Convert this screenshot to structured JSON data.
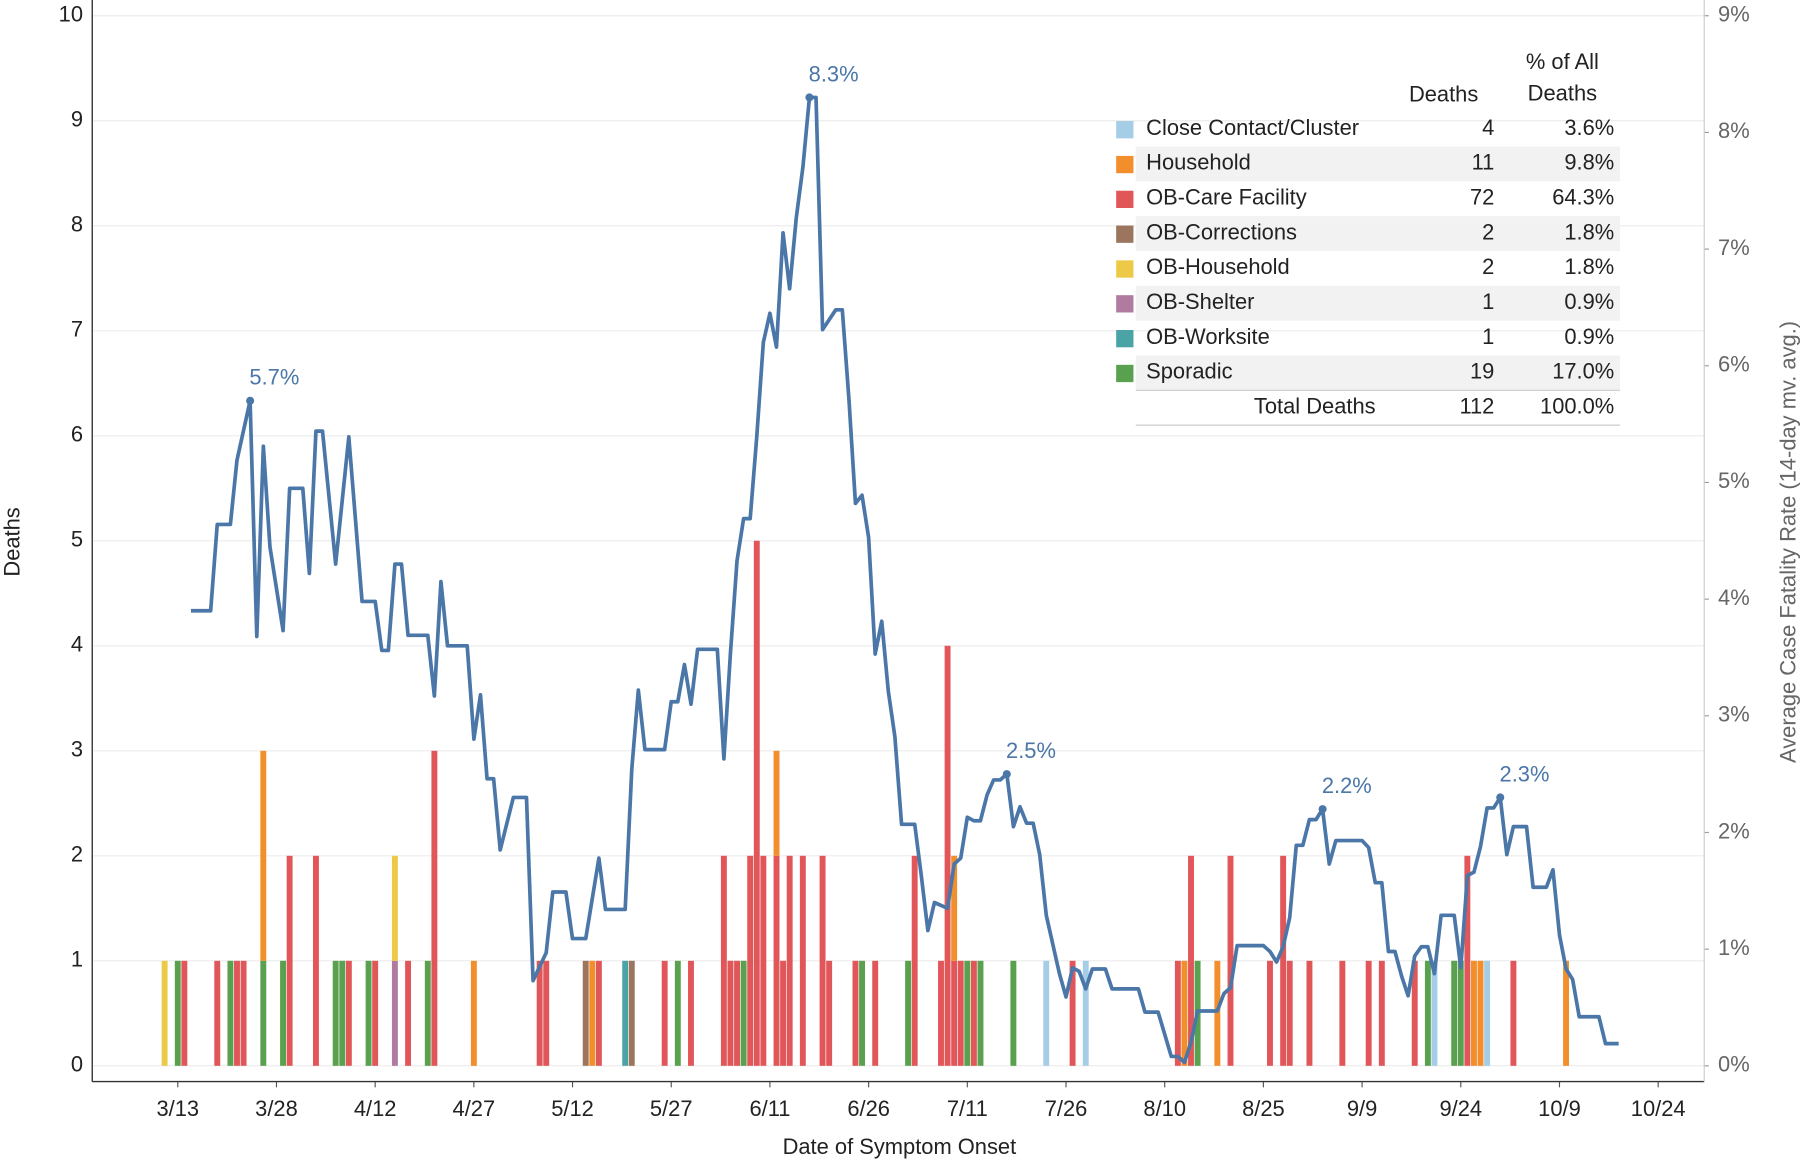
{
  "chart_data": {
    "type": "bar",
    "x_label": "Date of Symptom Onset",
    "y_label": "Deaths",
    "y2_label": "Average Case Fatality Rate (14-day mv. avg.)",
    "xlim": [
      "2/29",
      "10/31"
    ],
    "xticks": [
      "3/13",
      "3/28",
      "4/12",
      "4/27",
      "5/12",
      "5/27",
      "6/11",
      "6/26",
      "7/11",
      "7/26",
      "8/10",
      "8/25",
      "9/9",
      "9/24",
      "10/9",
      "10/24"
    ],
    "ylim": [
      -0.15,
      10.15
    ],
    "yticks": [
      0,
      1,
      2,
      3,
      4,
      5,
      6,
      7,
      8,
      9,
      10
    ],
    "y2lim": [
      -0.135,
      9.135
    ],
    "y2ticks": [
      {
        "value": 0,
        "label": "0%"
      },
      {
        "value": 1,
        "label": "1%"
      },
      {
        "value": 2,
        "label": "2%"
      },
      {
        "value": 3,
        "label": "3%"
      },
      {
        "value": 4,
        "label": "4%"
      },
      {
        "value": 5,
        "label": "5%"
      },
      {
        "value": 6,
        "label": "6%"
      },
      {
        "value": 7,
        "label": "7%"
      },
      {
        "value": 8,
        "label": "8%"
      },
      {
        "value": 9,
        "label": "9%"
      }
    ],
    "grid": true,
    "stacked": true,
    "series": [
      {
        "name": "Close Contact/Cluster",
        "color": "#a6cde6",
        "x": [
          "7/23",
          "7/29",
          "9/20",
          "9/28"
        ],
        "values": [
          1,
          1,
          1,
          1
        ],
        "total_deaths": 4,
        "share": 3.6,
        "share_label": "3.6%"
      },
      {
        "name": "Household",
        "color": "#f28e2b",
        "x": [
          "3/26",
          "4/27",
          "5/15",
          "6/12",
          "7/9",
          "8/13",
          "8/18",
          "9/26",
          "9/27",
          "10/10"
        ],
        "values": [
          2,
          1,
          1,
          1,
          1,
          1,
          1,
          1,
          1,
          1
        ],
        "total_deaths": 11,
        "share": 9.8,
        "share_label": "9.8%"
      },
      {
        "name": "OB-Care Facility",
        "color": "#e15759",
        "x": [
          "3/14",
          "3/19",
          "3/22",
          "3/23",
          "3/30",
          "4/3",
          "4/8",
          "4/12",
          "4/17",
          "4/21",
          "5/7",
          "5/8",
          "5/16",
          "5/26",
          "5/30",
          "6/4",
          "6/5",
          "6/6",
          "6/8",
          "6/9",
          "6/10",
          "6/12",
          "6/13",
          "6/14",
          "6/16",
          "6/19",
          "6/20",
          "6/24",
          "6/27",
          "7/3",
          "7/7",
          "7/8",
          "7/9",
          "7/10",
          "7/12",
          "7/27",
          "8/12",
          "8/14",
          "8/20",
          "8/26",
          "8/28",
          "8/29",
          "9/1",
          "9/6",
          "9/10",
          "9/12",
          "9/17",
          "9/25",
          "10/2"
        ],
        "values": [
          1,
          1,
          1,
          1,
          2,
          2,
          1,
          1,
          1,
          3,
          1,
          1,
          1,
          1,
          1,
          2,
          1,
          1,
          2,
          5,
          2,
          2,
          1,
          2,
          2,
          2,
          1,
          1,
          1,
          2,
          1,
          4,
          1,
          1,
          1,
          1,
          1,
          2,
          2,
          1,
          2,
          1,
          1,
          1,
          1,
          1,
          1,
          2,
          1
        ],
        "total_deaths": 72,
        "share": 64.3,
        "share_label": "64.3%"
      },
      {
        "name": "OB-Corrections",
        "color": "#9c755f",
        "x": [
          "5/14",
          "5/21"
        ],
        "values": [
          1,
          1
        ],
        "total_deaths": 2,
        "share": 1.8,
        "share_label": "1.8%"
      },
      {
        "name": "OB-Household",
        "color": "#edc948",
        "x": [
          "3/11",
          "4/15"
        ],
        "values": [
          1,
          1
        ],
        "total_deaths": 2,
        "share": 1.8,
        "share_label": "1.8%"
      },
      {
        "name": "OB-Shelter",
        "color": "#b07aa1",
        "x": [
          "4/15"
        ],
        "values": [
          1
        ],
        "total_deaths": 1,
        "share": 0.9,
        "share_label": "0.9%"
      },
      {
        "name": "OB-Worksite",
        "color": "#4aa3a4",
        "x": [
          "5/20"
        ],
        "values": [
          1
        ],
        "total_deaths": 1,
        "share": 0.9,
        "share_label": "0.9%"
      },
      {
        "name": "Sporadic",
        "color": "#59a14f",
        "x": [
          "3/13",
          "3/21",
          "3/26",
          "3/29",
          "4/6",
          "4/7",
          "4/11",
          "4/20",
          "5/28",
          "6/7",
          "6/25",
          "7/2",
          "7/11",
          "7/13",
          "7/18",
          "8/15",
          "9/19",
          "9/23",
          "9/24"
        ],
        "values": [
          1,
          1,
          1,
          1,
          1,
          1,
          1,
          1,
          1,
          1,
          1,
          1,
          1,
          1,
          1,
          1,
          1,
          1,
          1
        ],
        "total_deaths": 19,
        "share": 17.0,
        "share_label": "17.0%"
      }
    ],
    "line": {
      "axis": "y2",
      "color": "#4a76a8",
      "x": [
        "3/15",
        "3/18",
        "3/19",
        "3/21",
        "3/22",
        "3/24",
        "3/25",
        "3/26",
        "3/27",
        "3/29",
        "3/30",
        "4/1",
        "4/2",
        "4/3",
        "4/4",
        "4/6",
        "4/8",
        "4/10",
        "4/12",
        "4/13",
        "4/14",
        "4/15",
        "4/16",
        "4/17",
        "4/20",
        "4/21",
        "4/22",
        "4/23",
        "4/26",
        "4/27",
        "4/28",
        "4/29",
        "4/30",
        "5/1",
        "5/3",
        "5/5",
        "5/6",
        "5/8",
        "5/9",
        "5/11",
        "5/12",
        "5/14",
        "5/16",
        "5/17",
        "5/20",
        "5/21",
        "5/22",
        "5/23",
        "5/26",
        "5/27",
        "5/28",
        "5/29",
        "5/30",
        "5/31",
        "6/3",
        "6/4",
        "6/5",
        "6/6",
        "6/7",
        "6/8",
        "6/9",
        "6/10",
        "6/11",
        "6/12",
        "6/13",
        "6/14",
        "6/15",
        "6/16",
        "6/17",
        "6/18",
        "6/19",
        "6/21",
        "6/22",
        "6/23",
        "6/24",
        "6/25",
        "6/26",
        "6/27",
        "6/28",
        "6/29",
        "6/30",
        "7/1",
        "7/3",
        "7/4",
        "7/5",
        "7/6",
        "7/8",
        "7/9",
        "7/10",
        "7/11",
        "7/12",
        "7/13",
        "7/14",
        "7/15",
        "7/16",
        "7/17",
        "7/18",
        "7/19",
        "7/20",
        "7/21",
        "7/22",
        "7/23",
        "7/24",
        "7/25",
        "7/26",
        "7/27",
        "7/28",
        "7/29",
        "7/30",
        "8/1",
        "8/2",
        "8/6",
        "8/7",
        "8/9",
        "8/10",
        "8/11",
        "8/12",
        "8/13",
        "8/14",
        "8/15",
        "8/18",
        "8/19",
        "8/20",
        "8/21",
        "8/25",
        "8/26",
        "8/27",
        "8/28",
        "8/29",
        "8/30",
        "8/31",
        "9/1",
        "9/2",
        "9/3",
        "9/4",
        "9/5",
        "9/9",
        "9/10",
        "9/11",
        "9/12",
        "9/13",
        "9/14",
        "9/15",
        "9/16",
        "9/17",
        "9/18",
        "9/19",
        "9/20",
        "9/21",
        "9/23",
        "9/24",
        "9/25",
        "9/26",
        "9/27",
        "9/28",
        "9/29",
        "9/30",
        "10/1",
        "10/2",
        "10/4",
        "10/5",
        "10/7",
        "10/8",
        "10/9",
        "10/10",
        "10/11",
        "10/12",
        "10/15",
        "10/16",
        "10/18"
      ],
      "values": [
        3.9,
        3.9,
        4.64,
        4.64,
        5.19,
        5.7,
        3.68,
        5.31,
        4.45,
        3.73,
        4.95,
        4.95,
        4.22,
        5.44,
        5.44,
        4.3,
        5.39,
        3.98,
        3.98,
        3.56,
        3.56,
        4.3,
        4.3,
        3.69,
        3.69,
        3.17,
        4.15,
        3.6,
        3.6,
        2.8,
        3.18,
        2.46,
        2.46,
        1.85,
        2.3,
        2.3,
        0.73,
        0.97,
        1.49,
        1.49,
        1.09,
        1.09,
        1.78,
        1.34,
        1.34,
        2.54,
        3.22,
        2.71,
        2.71,
        3.12,
        3.12,
        3.44,
        3.1,
        3.57,
        3.57,
        2.63,
        3.54,
        4.33,
        4.69,
        4.69,
        5.39,
        6.2,
        6.45,
        6.16,
        7.14,
        6.66,
        7.27,
        7.7,
        8.3,
        8.3,
        6.31,
        6.48,
        6.48,
        5.72,
        4.82,
        4.89,
        4.53,
        3.53,
        3.81,
        3.21,
        2.82,
        2.07,
        2.07,
        1.63,
        1.16,
        1.4,
        1.35,
        1.73,
        1.78,
        2.13,
        2.1,
        2.1,
        2.32,
        2.45,
        2.45,
        2.5,
        2.05,
        2.22,
        2.08,
        2.08,
        1.81,
        1.29,
        1.04,
        0.79,
        0.59,
        0.84,
        0.81,
        0.66,
        0.83,
        0.83,
        0.66,
        0.66,
        0.46,
        0.46,
        0.27,
        0.08,
        0.08,
        0.03,
        0.2,
        0.47,
        0.47,
        0.62,
        0.67,
        1.03,
        1.03,
        0.98,
        0.89,
        1.02,
        1.27,
        1.89,
        1.89,
        2.11,
        2.11,
        2.2,
        1.73,
        1.93,
        1.93,
        1.87,
        1.57,
        1.57,
        0.98,
        0.98,
        0.77,
        0.6,
        0.94,
        1.02,
        1.02,
        0.79,
        1.29,
        1.29,
        0.84,
        1.63,
        1.66,
        1.88,
        2.21,
        2.21,
        2.3,
        1.81,
        2.05,
        2.05,
        1.53,
        1.53,
        1.68,
        1.12,
        0.83,
        0.74,
        0.42,
        0.42,
        0.19,
        0.19
      ]
    },
    "annotations": [
      {
        "x": "3/24",
        "value": 5.7,
        "label": "5.7%"
      },
      {
        "x": "6/17",
        "value": 8.3,
        "label": "8.3%"
      },
      {
        "x": "7/17",
        "value": 2.5,
        "label": "2.5%"
      },
      {
        "x": "9/3",
        "value": 2.2,
        "label": "2.2%"
      },
      {
        "x": "9/30",
        "value": 2.3,
        "label": "2.3%"
      }
    ],
    "table": {
      "columns": [
        "Deaths",
        "% of All Deaths"
      ],
      "total_name": "Total Deaths",
      "total_deaths": 112,
      "total_share": 100.0,
      "total_share_label": "100.0%"
    }
  }
}
